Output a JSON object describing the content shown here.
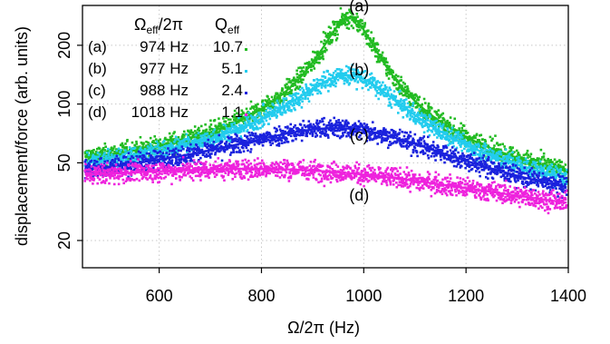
{
  "chart_data": {
    "type": "scatter",
    "xlabel": "Ω/2π (Hz)",
    "ylabel": "displacement/force (arb. units)",
    "xlim": [
      450,
      1400
    ],
    "ylim": [
      14.5,
      320
    ],
    "yscale": "log",
    "grid": true,
    "x_ticks": [
      "600",
      "800",
      "1000",
      "1200",
      "1400"
    ],
    "x_tick_values": [
      600,
      800,
      1000,
      1200,
      1400
    ],
    "y_ticks": [
      "20",
      "50",
      "100",
      "200"
    ],
    "y_tick_values": [
      20,
      50,
      100,
      200
    ],
    "legend": {
      "position": "top-left",
      "header_freq": "Ω",
      "header_freq_sub": "eff",
      "header_freq_tail": "/2π",
      "header_q": "Q",
      "header_q_sub": "eff",
      "rows": [
        {
          "tag": "(a)",
          "freq": "974 Hz",
          "q": "10.7"
        },
        {
          "tag": "(b)",
          "freq": "977 Hz",
          "q": "5.1"
        },
        {
          "tag": "(c)",
          "freq": "988 Hz",
          "q": "2.4"
        },
        {
          "tag": "(d)",
          "freq": "1018 Hz",
          "q": "1.1"
        }
      ]
    },
    "series": [
      {
        "label": "(a)",
        "color": "#22bb22",
        "f0": 974,
        "Q": 10.7,
        "peak": 255,
        "offset": 15
      },
      {
        "label": "(b)",
        "color": "#22ccee",
        "f0": 977,
        "Q": 5.1,
        "peak": 120,
        "offset": 10
      },
      {
        "label": "(c)",
        "color": "#1a22dd",
        "f0": 988,
        "Q": 2.4,
        "peak": 57,
        "offset": 5
      },
      {
        "label": "(d)",
        "color": "#ee22dd",
        "f0": 1018,
        "Q": 1.1,
        "peak": 29,
        "offset": 0
      }
    ],
    "curve_label_values": [
      {
        "text": "(a)",
        "x": 975,
        "y": 298
      },
      {
        "text": "(b)",
        "x": 975,
        "y": 140
      },
      {
        "text": "(c)",
        "x": 975,
        "y": 65
      },
      {
        "text": "(d)",
        "x": 975,
        "y": 32
      }
    ]
  }
}
